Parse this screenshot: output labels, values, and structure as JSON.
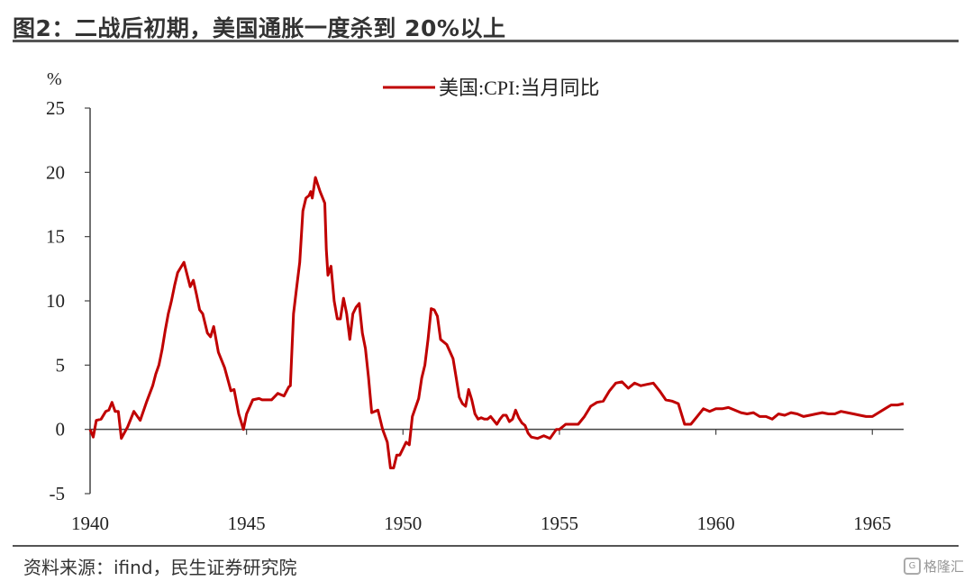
{
  "header": {
    "title": "图2：二战后初期，美国通胀一度杀到 20%以上"
  },
  "footer": {
    "source": "资料来源：ifind，民生证券研究院",
    "watermark": "格隆汇"
  },
  "chart_data": {
    "type": "line",
    "ylabel": "%",
    "ylim": [
      -5,
      25
    ],
    "xlim": [
      1940,
      1966
    ],
    "yticks": [
      -5,
      0,
      5,
      10,
      15,
      20,
      25
    ],
    "xticks": [
      1940,
      1945,
      1950,
      1955,
      1960,
      1965
    ],
    "legend_position": "top-center",
    "grid": false,
    "series": [
      {
        "name": "美国:CPI:当月同比",
        "color": "#C00000",
        "x": [
          1940.0,
          1940.1,
          1940.2,
          1940.35,
          1940.5,
          1940.6,
          1940.7,
          1940.8,
          1940.9,
          1941.0,
          1941.2,
          1941.4,
          1941.6,
          1941.8,
          1942.0,
          1942.1,
          1942.2,
          1942.3,
          1942.4,
          1942.5,
          1942.55,
          1942.6,
          1942.7,
          1942.8,
          1942.9,
          1943.0,
          1943.2,
          1943.3,
          1943.4,
          1943.5,
          1943.6,
          1943.75,
          1943.85,
          1943.95,
          1944.1,
          1944.3,
          1944.5,
          1944.6,
          1944.75,
          1944.9,
          1945.0,
          1945.2,
          1945.4,
          1945.5,
          1945.7,
          1945.8,
          1946.0,
          1946.2,
          1946.35,
          1946.4,
          1946.5,
          1946.6,
          1946.7,
          1946.8,
          1946.9,
          1947.0,
          1947.05,
          1947.1,
          1947.2,
          1947.35,
          1947.5,
          1947.55,
          1947.6,
          1947.7,
          1947.8,
          1947.9,
          1948.0,
          1948.1,
          1948.2,
          1948.3,
          1948.4,
          1948.5,
          1948.6,
          1948.7,
          1948.8,
          1948.9,
          1949.0,
          1949.2,
          1949.35,
          1949.5,
          1949.6,
          1949.7,
          1949.8,
          1949.9,
          1950.0,
          1950.1,
          1950.2,
          1950.3,
          1950.5,
          1950.6,
          1950.7,
          1950.8,
          1950.9,
          1951.0,
          1951.1,
          1951.2,
          1951.4,
          1951.6,
          1951.7,
          1951.8,
          1951.9,
          1952.0,
          1952.1,
          1952.2,
          1952.3,
          1952.4,
          1952.5,
          1952.6,
          1952.7,
          1952.8,
          1953.0,
          1953.1,
          1953.2,
          1953.3,
          1953.4,
          1953.5,
          1953.6,
          1953.7,
          1953.8,
          1953.9,
          1954.0,
          1954.1,
          1954.3,
          1954.5,
          1954.7,
          1954.9,
          1955.0,
          1955.2,
          1955.4,
          1955.6,
          1955.8,
          1956.0,
          1956.2,
          1956.4,
          1956.6,
          1956.8,
          1957.0,
          1957.2,
          1957.4,
          1957.6,
          1957.8,
          1958.0,
          1958.2,
          1958.4,
          1958.6,
          1958.8,
          1959.0,
          1959.2,
          1959.4,
          1959.6,
          1959.8,
          1960.0,
          1960.2,
          1960.4,
          1960.6,
          1960.8,
          1961.0,
          1961.2,
          1961.4,
          1961.6,
          1961.8,
          1962.0,
          1962.2,
          1962.4,
          1962.6,
          1962.8,
          1963.0,
          1963.2,
          1963.4,
          1963.6,
          1963.8,
          1964.0,
          1964.2,
          1964.4,
          1964.6,
          1964.8,
          1965.0,
          1965.2,
          1965.4,
          1965.6,
          1965.8,
          1966.0
        ],
        "y": [
          0.0,
          -0.6,
          0.7,
          0.8,
          1.4,
          1.5,
          2.1,
          1.4,
          1.4,
          -0.7,
          0.2,
          1.4,
          0.7,
          2.1,
          3.4,
          4.3,
          5.0,
          6.2,
          7.7,
          9.0,
          9.5,
          10.0,
          11.2,
          12.2,
          12.6,
          13.0,
          11.1,
          11.6,
          10.5,
          9.3,
          9.0,
          7.5,
          7.2,
          8.0,
          6.0,
          4.8,
          3.0,
          3.1,
          1.2,
          0.0,
          1.2,
          2.3,
          2.4,
          2.3,
          2.3,
          2.3,
          2.8,
          2.6,
          3.3,
          3.4,
          9.0,
          11.0,
          13.0,
          17.0,
          18.0,
          18.2,
          18.5,
          18.0,
          19.6,
          18.5,
          17.6,
          14.0,
          12.0,
          12.7,
          10.0,
          8.6,
          8.6,
          10.2,
          9.0,
          7.0,
          9.0,
          9.5,
          9.8,
          7.5,
          6.3,
          4.0,
          1.3,
          1.5,
          0.0,
          -1.0,
          -3.0,
          -3.0,
          -2.0,
          -2.0,
          -1.5,
          -1.0,
          -1.2,
          1.0,
          2.4,
          4.0,
          5.0,
          7.0,
          9.4,
          9.3,
          8.8,
          7.0,
          6.6,
          5.5,
          4.0,
          2.5,
          2.0,
          1.8,
          3.1,
          2.3,
          1.2,
          0.8,
          0.9,
          0.8,
          0.8,
          1.0,
          0.4,
          0.8,
          1.1,
          1.1,
          0.6,
          0.8,
          1.5,
          0.9,
          0.5,
          0.3,
          -0.3,
          -0.6,
          -0.7,
          -0.5,
          -0.7,
          0.0,
          0.0,
          0.4,
          0.4,
          0.4,
          1.0,
          1.8,
          2.1,
          2.2,
          3.0,
          3.6,
          3.7,
          3.2,
          3.6,
          3.4,
          3.5,
          3.6,
          3.0,
          2.3,
          2.2,
          2.0,
          0.4,
          0.4,
          1.0,
          1.6,
          1.4,
          1.6,
          1.6,
          1.7,
          1.5,
          1.3,
          1.2,
          1.3,
          1.0,
          1.0,
          0.8,
          1.2,
          1.1,
          1.3,
          1.2,
          1.0,
          1.1,
          1.2,
          1.3,
          1.2,
          1.2,
          1.4,
          1.3,
          1.2,
          1.1,
          1.0,
          1.0,
          1.3,
          1.6,
          1.9,
          1.9,
          2.0
        ]
      }
    ]
  }
}
